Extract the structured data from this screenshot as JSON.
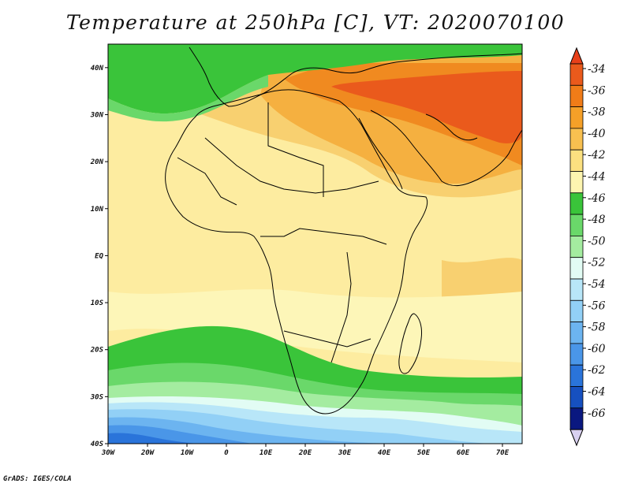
{
  "title": "Temperature at 250hPa [C], VT: 2020070100",
  "credit": "GrADS: IGES/COLA",
  "map": {
    "lon_range": [
      -30,
      75
    ],
    "lat_range": [
      -40,
      45
    ],
    "x_ticks": [
      {
        "value": -30,
        "label": "30W"
      },
      {
        "value": -20,
        "label": "20W"
      },
      {
        "value": -10,
        "label": "10W"
      },
      {
        "value": 0,
        "label": "0"
      },
      {
        "value": 10,
        "label": "10E"
      },
      {
        "value": 20,
        "label": "20E"
      },
      {
        "value": 30,
        "label": "30E"
      },
      {
        "value": 40,
        "label": "40E"
      },
      {
        "value": 50,
        "label": "50E"
      },
      {
        "value": 60,
        "label": "60E"
      },
      {
        "value": 70,
        "label": "70E"
      }
    ],
    "y_ticks": [
      {
        "value": 40,
        "label": "40N"
      },
      {
        "value": 30,
        "label": "30N"
      },
      {
        "value": 20,
        "label": "20N"
      },
      {
        "value": 10,
        "label": "10N"
      },
      {
        "value": 0,
        "label": "EQ"
      },
      {
        "value": -10,
        "label": "10S"
      },
      {
        "value": -20,
        "label": "20S"
      },
      {
        "value": -30,
        "label": "30S"
      },
      {
        "value": -40,
        "label": "40S"
      }
    ]
  },
  "colorbar": {
    "labels": [
      "-34",
      "-36",
      "-38",
      "-40",
      "-42",
      "-44",
      "-46",
      "-48",
      "-50",
      "-52",
      "-54",
      "-56",
      "-58",
      "-60",
      "-62",
      "-64",
      "-66"
    ],
    "top_arrow_color": "#e8401a",
    "bottom_arrow_color": "#d8d0f0",
    "colors": [
      "#ea5a1c",
      "#f07c18",
      "#f5a028",
      "#f8c050",
      "#fbe080",
      "#fdf5b0",
      "#3ac43a",
      "#6ad86a",
      "#a4eca0",
      "#e2fcf4",
      "#b8e6f8",
      "#92d0f6",
      "#6cb4f0",
      "#4a96e8",
      "#2a74da",
      "#1650c0",
      "#0a1880"
    ]
  },
  "colors": {
    "ocean": "#fdf0a8",
    "africa_land": "#fdf2b0",
    "southern_ocean": "#7cbcf0",
    "coastline": "#000000"
  }
}
